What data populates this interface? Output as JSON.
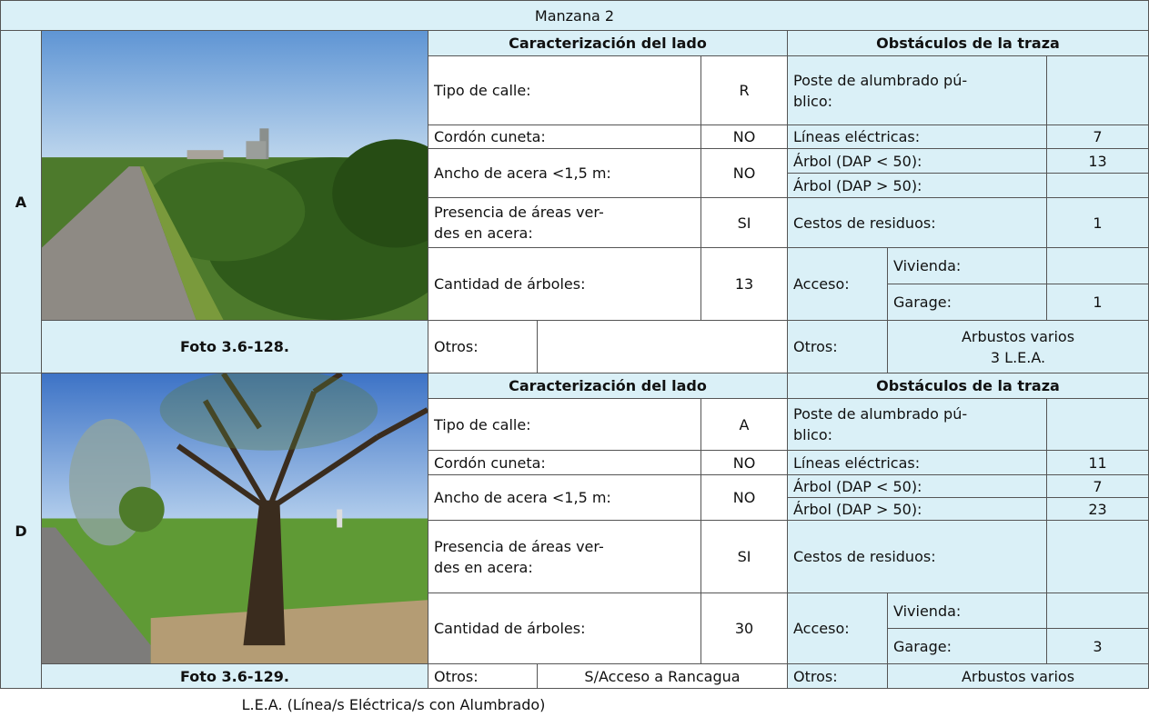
{
  "title": "Manzana 2",
  "sections": [
    {
      "side": "A",
      "photo_caption": "Foto 3.6-128.",
      "characterization": {
        "heading": "Caracterización del lado",
        "rows": [
          {
            "label": "Tipo de calle:",
            "value": "R"
          },
          {
            "label": "Cordón cuneta:",
            "value": "NO"
          },
          {
            "label": "Ancho de acera <1,5 m:",
            "value": "NO"
          },
          {
            "label": [
              "Presencia de áreas ver-",
              "des en acera:"
            ],
            "value": "SI"
          },
          {
            "label": "Cantidad de árboles:",
            "value": 13
          }
        ],
        "otros": {
          "label": "Otros:"
        }
      },
      "obstacles": {
        "heading": "Obstáculos de la traza",
        "rows": [
          {
            "label": [
              "Poste de alumbrado pú-",
              "blico:"
            ]
          },
          {
            "label": "Líneas eléctricas:",
            "value": 7
          },
          {
            "label": "Árbol (DAP < 50):",
            "value": 13
          },
          {
            "label": "Árbol (DAP > 50):"
          },
          {
            "label": "Cestos de residuos:",
            "value": 1
          }
        ],
        "acceso": {
          "label": "Acceso:",
          "rows": [
            {
              "label": "Vivienda:"
            },
            {
              "label": "Garage:",
              "value": 1
            }
          ]
        },
        "otros": {
          "label": "Otros:",
          "value": [
            "Arbustos varios",
            "3 L.E.A."
          ]
        }
      }
    },
    {
      "side": "D",
      "photo_caption": "Foto 3.6-129.",
      "characterization": {
        "heading": "Caracterización del lado",
        "rows": [
          {
            "label": "Tipo de calle:",
            "value": "A"
          },
          {
            "label": "Cordón cuneta:",
            "value": "NO"
          },
          {
            "label": "Ancho de acera <1,5 m:",
            "value": "NO"
          },
          {
            "label": [
              "Presencia de áreas ver-",
              "des en acera:"
            ],
            "value": "SI"
          },
          {
            "label": "Cantidad de árboles:",
            "value": 30
          }
        ],
        "otros": {
          "label": "Otros:",
          "value": "S/Acceso a Rancagua"
        }
      },
      "obstacles": {
        "heading": "Obstáculos de la traza",
        "rows": [
          {
            "label": [
              "Poste de alumbrado pú-",
              "blico:"
            ]
          },
          {
            "label": "Líneas eléctricas:",
            "value": 11
          },
          {
            "label": "Árbol (DAP < 50):",
            "value": 7
          },
          {
            "label": "Árbol (DAP > 50):",
            "value": 23
          },
          {
            "label": "Cestos de residuos:"
          }
        ],
        "acceso": {
          "label": "Acceso:",
          "rows": [
            {
              "label": "Vivienda:"
            },
            {
              "label": "Garage:",
              "value": 3
            }
          ]
        },
        "otros": {
          "label": "Otros:",
          "value": "Arbustos varios"
        }
      }
    }
  ],
  "footnote": "L.E.A. (Línea/s Eléctrica/s con Alumbrado)"
}
